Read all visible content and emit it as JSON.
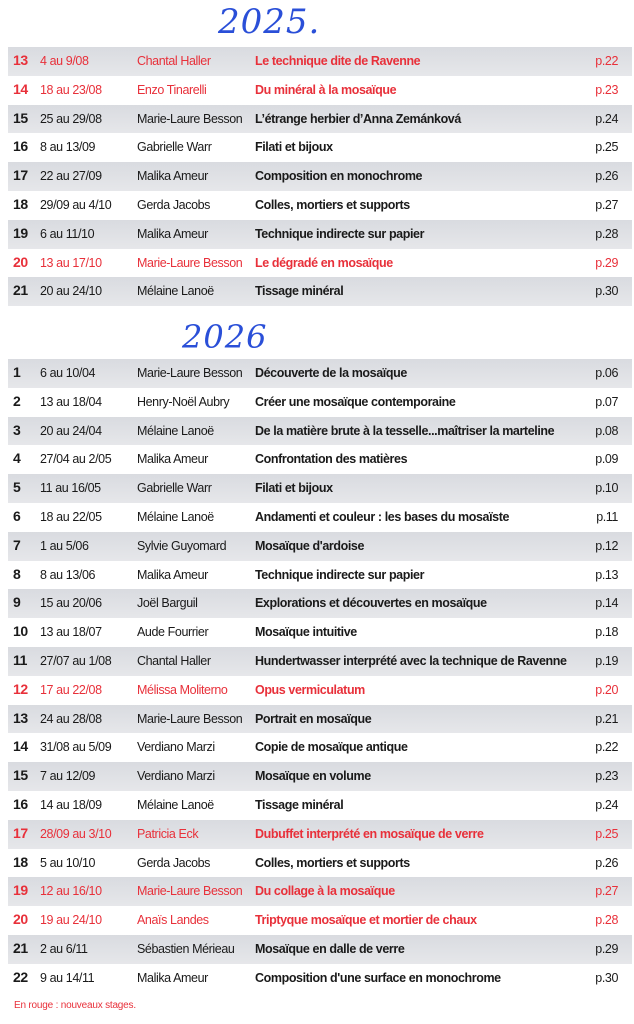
{
  "colors": {
    "new_course": "#e8303a",
    "handwriting": "#2a4fd8",
    "row_shade": "#dcdee2"
  },
  "sections": [
    {
      "year": "2025.",
      "rows": [
        {
          "num": "13",
          "date": "4 au 9/08",
          "name": "Chantal Haller",
          "title": "Le technique dite de Ravenne",
          "page": "p.22",
          "new": true
        },
        {
          "num": "14",
          "date": "18 au 23/08",
          "name": "Enzo Tinarelli",
          "title": "Du minéral à la mosaïque",
          "page": "p.23",
          "new": true
        },
        {
          "num": "15",
          "date": "25 au 29/08",
          "name": "Marie-Laure Besson",
          "title": "L’étrange herbier d’Anna Zemánková",
          "page": "p.24",
          "new": false
        },
        {
          "num": "16",
          "date": "8 au 13/09",
          "name": "Gabrielle Warr",
          "title": "Filati et bijoux",
          "page": "p.25",
          "new": false
        },
        {
          "num": "17",
          "date": "22 au 27/09",
          "name": "Malika Ameur",
          "title": "Composition en monochrome",
          "page": "p.26",
          "new": false
        },
        {
          "num": "18",
          "date": "29/09 au 4/10",
          "name": "Gerda Jacobs",
          "title": "Colles, mortiers et supports",
          "page": "p.27",
          "new": false
        },
        {
          "num": "19",
          "date": "6 au 11/10",
          "name": "Malika Ameur",
          "title": "Technique indirecte sur papier",
          "page": "p.28",
          "new": false
        },
        {
          "num": "20",
          "date": "13 au 17/10",
          "name": "Marie-Laure Besson",
          "title": "Le dégradé en mosaïque",
          "page": "p.29",
          "new": true
        },
        {
          "num": "21",
          "date": "20 au 24/10",
          "name": "Mélaine Lanoë",
          "title": "Tissage minéral",
          "page": "p.30",
          "new": false
        }
      ]
    },
    {
      "year": "2026",
      "rows": [
        {
          "num": "1",
          "date": "6 au 10/04",
          "name": "Marie-Laure Besson",
          "title": "Découverte de la mosaïque",
          "page": "p.06",
          "new": false
        },
        {
          "num": "2",
          "date": "13 au 18/04",
          "name": "Henry-Noël Aubry",
          "title": "Créer une mosaïque contemporaine",
          "page": "p.07",
          "new": false
        },
        {
          "num": "3",
          "date": "20 au 24/04",
          "name": "Mélaine Lanoë",
          "title": "De la matière brute à la tesselle...maîtriser la marteline",
          "page": "p.08",
          "new": false
        },
        {
          "num": "4",
          "date": "27/04 au 2/05",
          "name": "Malika Ameur",
          "title": "Confrontation des matières",
          "page": "p.09",
          "new": false
        },
        {
          "num": "5",
          "date": "11 au 16/05",
          "name": "Gabrielle Warr",
          "title": "Filati et bijoux",
          "page": "p.10",
          "new": false
        },
        {
          "num": "6",
          "date": "18 au 22/05",
          "name": "Mélaine Lanoë",
          "title": "Andamenti et couleur : les bases du mosaïste",
          "page": "p.11",
          "new": false
        },
        {
          "num": "7",
          "date": "1 au 5/06",
          "name": "Sylvie Guyomard",
          "title": "Mosaïque d'ardoise",
          "page": "p.12",
          "new": false
        },
        {
          "num": "8",
          "date": "8 au 13/06",
          "name": "Malika Ameur",
          "title": "Technique indirecte sur papier",
          "page": "p.13",
          "new": false
        },
        {
          "num": "9",
          "date": "15 au 20/06",
          "name": "Joël Barguil",
          "title": "Explorations et découvertes en mosaïque",
          "page": "p.14",
          "new": false
        },
        {
          "num": "10",
          "date": "13 au 18/07",
          "name": "Aude Fourrier",
          "title": "Mosaïque intuitive",
          "page": "p.18",
          "new": false
        },
        {
          "num": "11",
          "date": "27/07 au 1/08",
          "name": "Chantal Haller",
          "title": "Hundertwasser interprété avec la technique de Ravenne",
          "page": "p.19",
          "new": false
        },
        {
          "num": "12",
          "date": "17 au 22/08",
          "name": "Mélissa Moliterno",
          "title": "Opus vermiculatum",
          "page": "p.20",
          "new": true
        },
        {
          "num": "13",
          "date": "24 au 28/08",
          "name": "Marie-Laure Besson",
          "title": "Portrait en mosaïque",
          "page": "p.21",
          "new": false
        },
        {
          "num": "14",
          "date": "31/08 au 5/09",
          "name": "Verdiano Marzi",
          "title": "Copie de mosaïque antique",
          "page": "p.22",
          "new": false
        },
        {
          "num": "15",
          "date": "7 au 12/09",
          "name": "Verdiano Marzi",
          "title": "Mosaïque en volume",
          "page": "p.23",
          "new": false
        },
        {
          "num": "16",
          "date": "14 au 18/09",
          "name": "Mélaine Lanoë",
          "title": "Tissage minéral",
          "page": "p.24",
          "new": false
        },
        {
          "num": "17",
          "date": "28/09 au 3/10",
          "name": "Patricia Eck",
          "title": "Dubuffet interprété en mosaïque de verre",
          "page": "p.25",
          "new": true
        },
        {
          "num": "18",
          "date": "5 au 10/10",
          "name": "Gerda Jacobs",
          "title": "Colles, mortiers et supports",
          "page": "p.26",
          "new": false
        },
        {
          "num": "19",
          "date": "12 au 16/10",
          "name": "Marie-Laure Besson",
          "title": "Du collage à la mosaïque",
          "page": "p.27",
          "new": true
        },
        {
          "num": "20",
          "date": "19 au 24/10",
          "name": "Anaïs Landes",
          "title": "Triptyque mosaïque et mortier de chaux",
          "page": "p.28",
          "new": true
        },
        {
          "num": "21",
          "date": "2 au 6/11",
          "name": "Sébastien Mérieau",
          "title": "Mosaïque en dalle de verre",
          "page": "p.29",
          "new": false
        },
        {
          "num": "22",
          "date": "9 au 14/11",
          "name": "Malika Ameur",
          "title": "Composition d'une surface en monochrome",
          "page": "p.30",
          "new": false
        }
      ]
    }
  ],
  "legend": "En rouge : nouveaux stages."
}
